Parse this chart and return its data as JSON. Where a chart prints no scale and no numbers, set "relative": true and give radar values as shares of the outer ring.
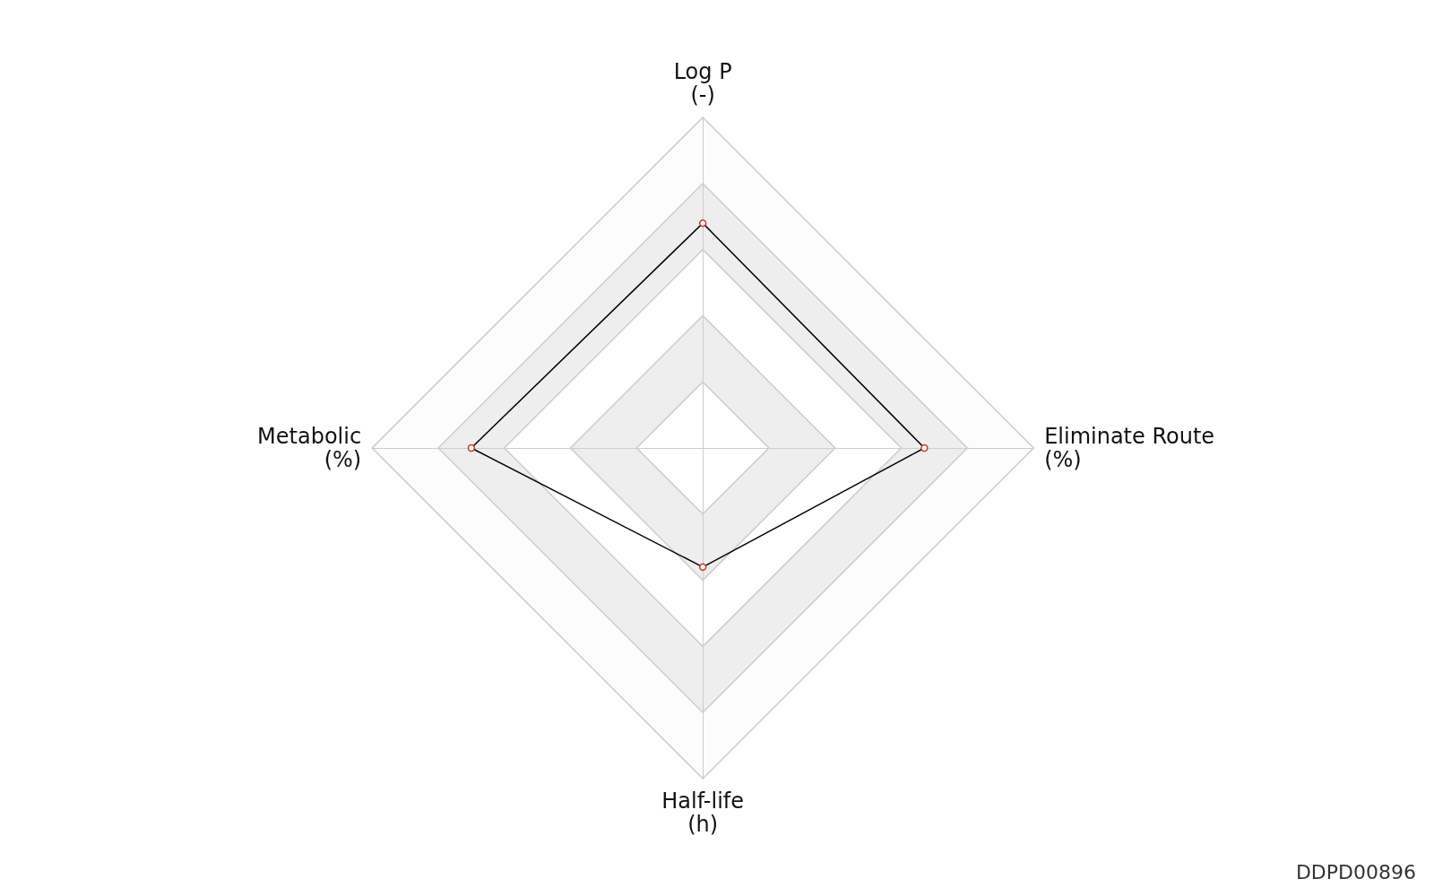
{
  "chart_data": {
    "type": "radar",
    "relative": true,
    "categories": [
      "Log P\n(-)",
      "Eliminate Route\n(%)",
      "Half-life\n(h)",
      "Metabolic\n(%)"
    ],
    "series": [
      {
        "color": "#000000",
        "values": [
          0.68,
          0.67,
          0.36,
          0.7
        ]
      }
    ],
    "marker": "circle",
    "line_style": "solid",
    "annotations": [
      "DDPD00896"
    ]
  }
}
